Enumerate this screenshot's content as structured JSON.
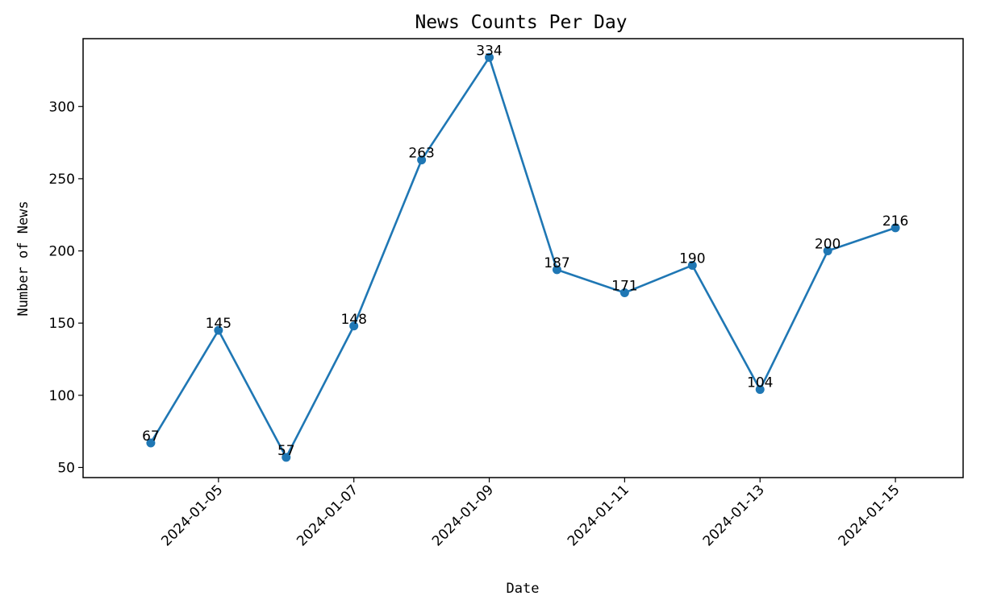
{
  "chart_data": {
    "type": "line",
    "title": "News Counts Per Day",
    "xlabel": "Date",
    "ylabel": "Number of News",
    "x": [
      "2024-01-04",
      "2024-01-05",
      "2024-01-06",
      "2024-01-07",
      "2024-01-08",
      "2024-01-09",
      "2024-01-10",
      "2024-01-11",
      "2024-01-12",
      "2024-01-13",
      "2024-01-14",
      "2024-01-15"
    ],
    "series": [
      {
        "values": [
          67,
          145,
          57,
          148,
          263,
          334,
          187,
          171,
          190,
          104,
          200,
          216
        ],
        "color": "#1f77b4",
        "marker": "circle"
      }
    ],
    "data_labels": [
      "67",
      "145",
      "57",
      "148",
      "263",
      "334",
      "187",
      "171",
      "190",
      "104",
      "200",
      "216"
    ],
    "x_ticks": [
      "2024-01-05",
      "2024-01-07",
      "2024-01-09",
      "2024-01-11",
      "2024-01-13",
      "2024-01-15"
    ],
    "x_tick_rotation_deg": 45,
    "y_ticks": [
      50,
      100,
      150,
      200,
      250,
      300
    ],
    "y_tick_labels": [
      "50",
      "100",
      "150",
      "200",
      "250",
      "300"
    ],
    "xlim": [
      "2024-01-03",
      "2024-01-16"
    ],
    "ylim": [
      43,
      347
    ],
    "grid": false,
    "legend": "none"
  }
}
